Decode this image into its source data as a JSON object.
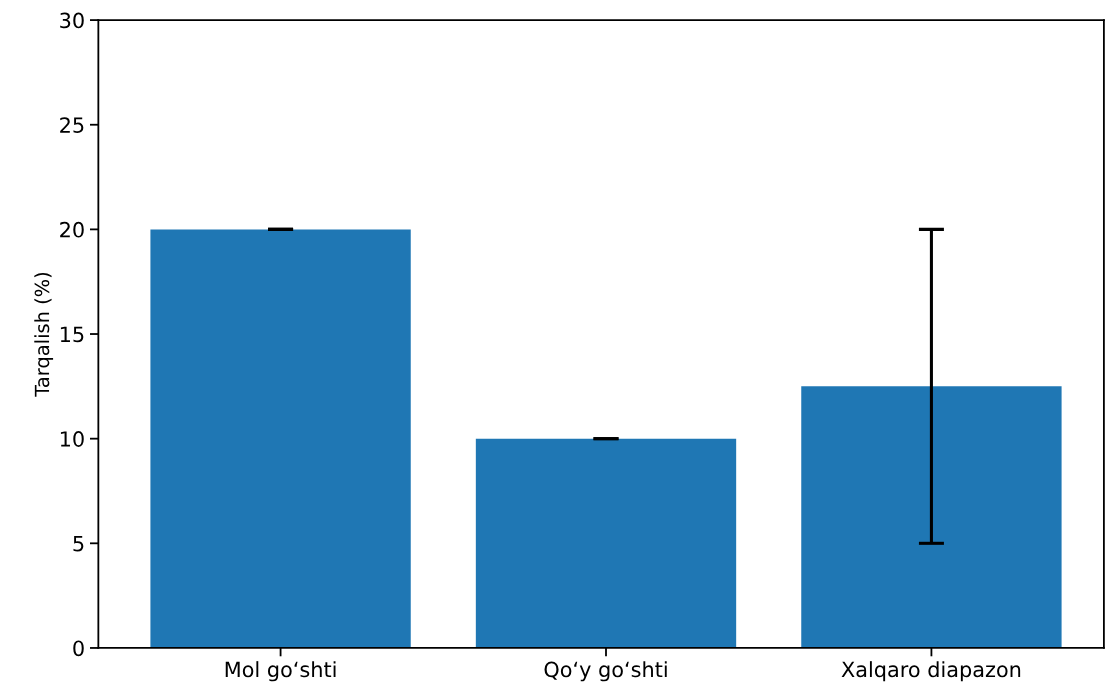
{
  "chart_data": {
    "type": "bar",
    "ylabel": "Tarqalish (%)",
    "categories": [
      "Mol go‘shti",
      "Qo‘y go‘shti",
      "Xalqaro diapazon"
    ],
    "values": [
      20,
      10,
      12.5
    ],
    "errors": [
      0,
      0,
      [
        5,
        20
      ]
    ],
    "color": "#1f77b4",
    "ylim": [
      0,
      30
    ],
    "yticks": [
      0,
      5,
      10,
      15,
      20,
      25,
      30
    ],
    "grid": false
  }
}
